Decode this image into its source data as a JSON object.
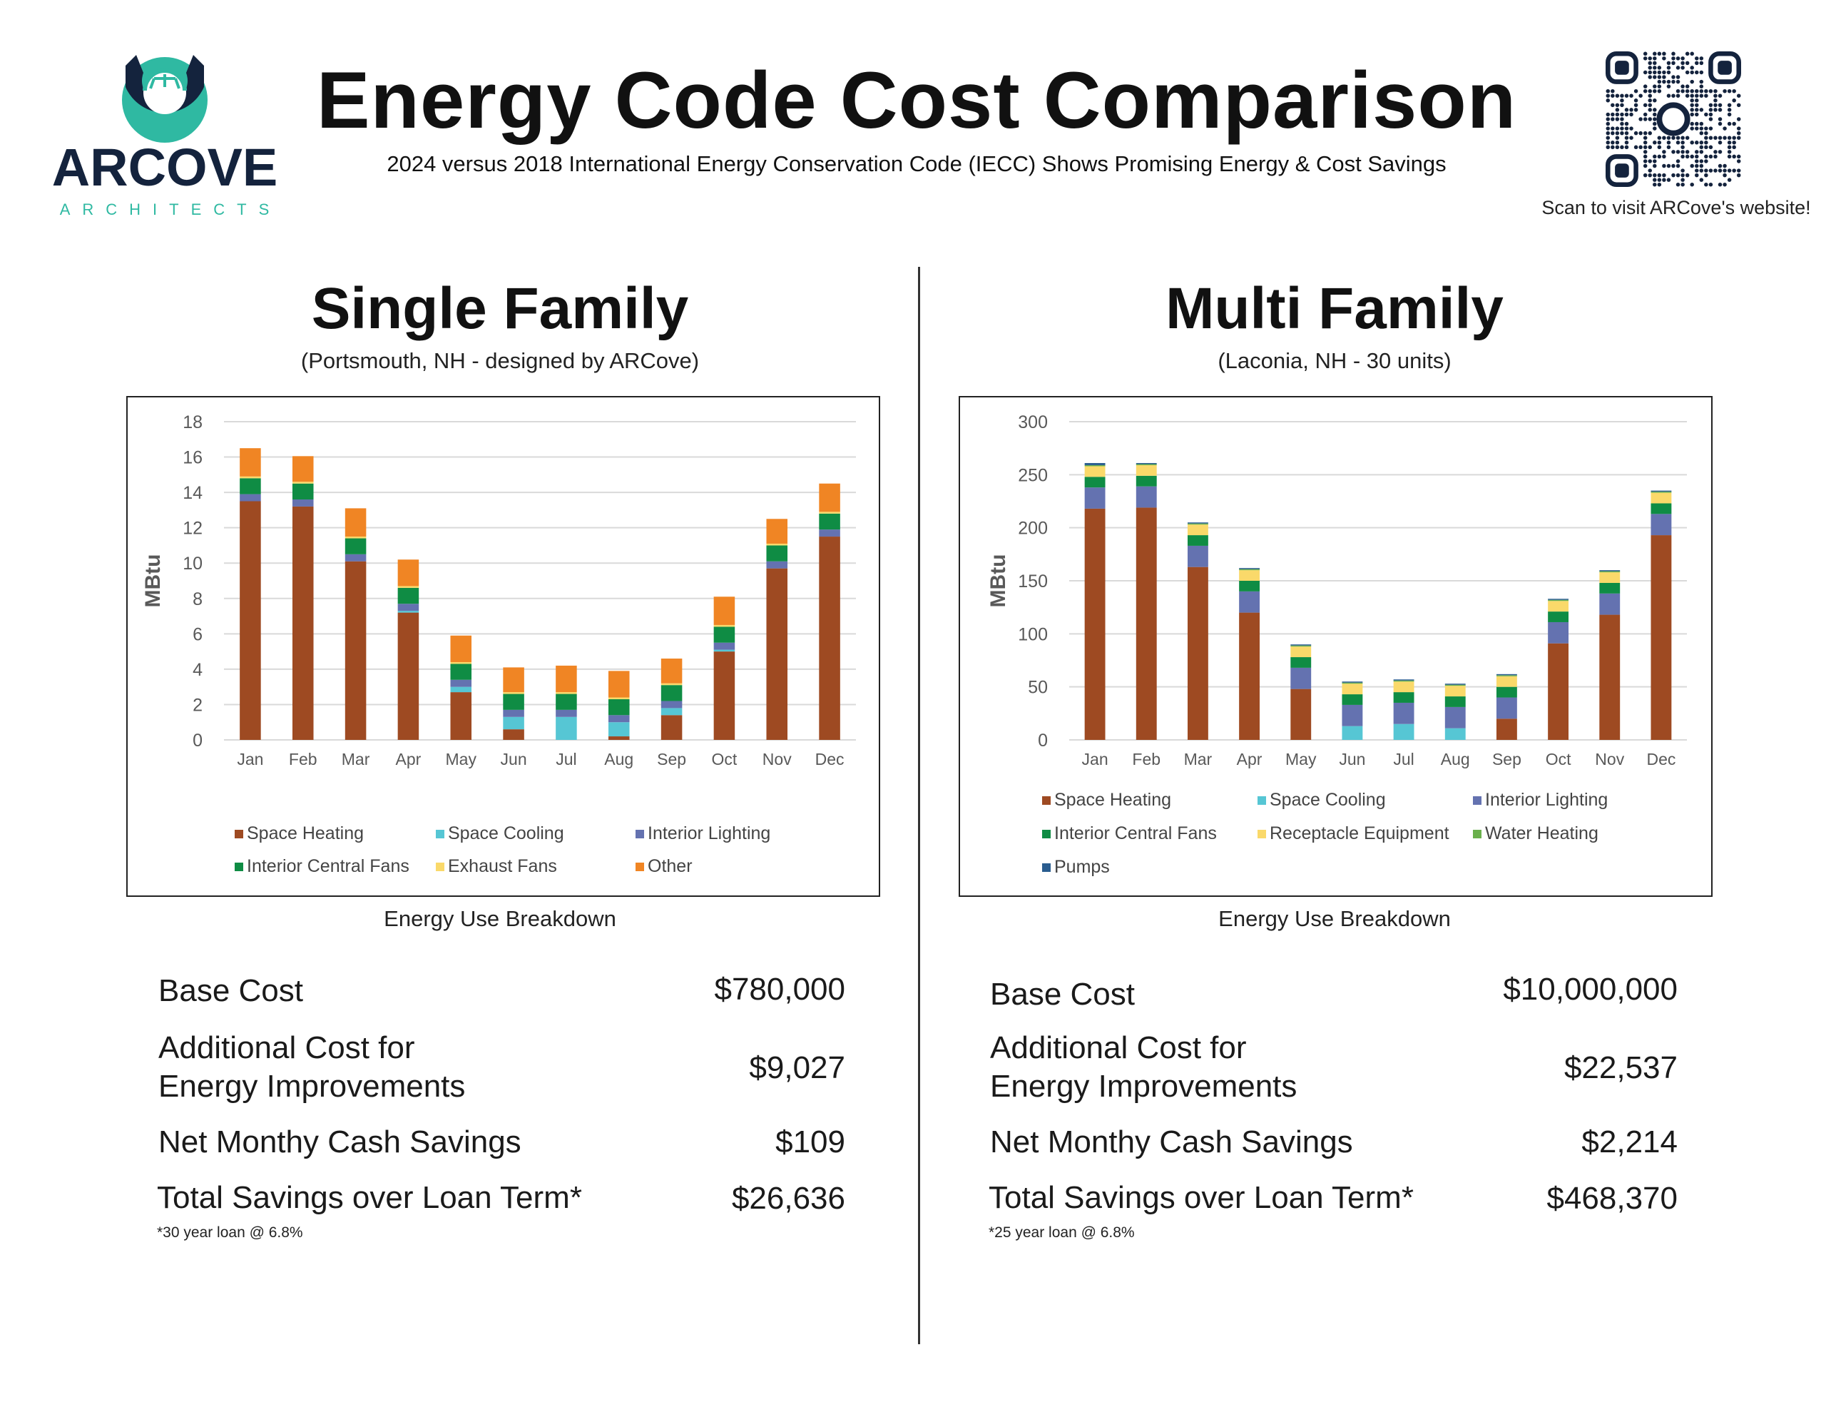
{
  "logo": {
    "wordmark": "ARCOVE",
    "tagline": "ARCHITECTS",
    "colors": {
      "navy": "#14233d",
      "teal": "#2fb9a2"
    }
  },
  "header": {
    "title": "Energy Code Cost Comparison",
    "subtitle": "2024 versus 2018 International Energy Conservation Code (IECC) Shows Promising Energy & Cost Savings",
    "qr_caption": "Scan to visit ARCove's website!"
  },
  "single": {
    "title": "Single Family",
    "subtitle": "(Portsmouth, NH - designed by ARCove)",
    "caption": "Energy Use Breakdown",
    "costs": {
      "base_label": "Base Cost",
      "base_value": "$780,000",
      "additional_label_1": "Additional Cost for",
      "additional_label_2": "Energy Improvements",
      "additional_value": "$9,027",
      "net_label": "Net Monthy Cash Savings",
      "net_value": "$109",
      "total_label": "Total Savings over Loan Term*",
      "total_value": "$26,636",
      "note": "*30 year loan @ 6.8%"
    }
  },
  "multi": {
    "title": "Multi Family",
    "subtitle": "(Laconia, NH - 30 units)",
    "caption": "Energy Use Breakdown",
    "costs": {
      "base_label": "Base Cost",
      "base_value": "$10,000,000",
      "additional_label_1": "Additional Cost for",
      "additional_label_2": "Energy Improvements",
      "additional_value": "$22,537",
      "net_label": "Net Monthy Cash Savings",
      "net_value": "$2,214",
      "total_label": "Total Savings over Loan Term*",
      "total_value": "$468,370",
      "note": "*25 year loan @ 6.8%"
    }
  },
  "chart_data": [
    {
      "type": "bar",
      "stacked": true,
      "title": "",
      "ylabel": "MBtu",
      "xlabel": "",
      "ylim": [
        0,
        18
      ],
      "yticks": [
        0,
        2,
        4,
        6,
        8,
        10,
        12,
        14,
        16,
        18
      ],
      "grid": true,
      "legend_position": "bottom",
      "categories": [
        "Jan",
        "Feb",
        "Mar",
        "Apr",
        "May",
        "Jun",
        "Jul",
        "Aug",
        "Sep",
        "Oct",
        "Nov",
        "Dec"
      ],
      "series": [
        {
          "name": "Space Heating",
          "color": "#9e4a22",
          "values": [
            13.5,
            13.2,
            10.1,
            7.2,
            2.7,
            0.6,
            0,
            0.2,
            1.4,
            5.0,
            9.7,
            11.5
          ]
        },
        {
          "name": "Space Cooling",
          "color": "#56c6d4",
          "values": [
            0,
            0,
            0,
            0.1,
            0.3,
            0.7,
            1.3,
            0.8,
            0.4,
            0.1,
            0,
            0
          ]
        },
        {
          "name": "Interior Lighting",
          "color": "#6472b0",
          "values": [
            0.4,
            0.4,
            0.4,
            0.4,
            0.4,
            0.4,
            0.4,
            0.4,
            0.4,
            0.4,
            0.4,
            0.4
          ]
        },
        {
          "name": "Interior Central Fans",
          "color": "#0f8c44",
          "values": [
            0.9,
            0.9,
            0.9,
            0.9,
            0.9,
            0.9,
            0.9,
            0.9,
            0.9,
            0.9,
            0.9,
            0.9
          ]
        },
        {
          "name": "Exhaust Fans",
          "color": "#fad96a",
          "values": [
            0.1,
            0.1,
            0.1,
            0.1,
            0.1,
            0.1,
            0.1,
            0.1,
            0.1,
            0.1,
            0.1,
            0.1
          ]
        },
        {
          "name": "Other",
          "color": "#f08524",
          "values": [
            1.6,
            1.45,
            1.6,
            1.5,
            1.5,
            1.4,
            1.5,
            1.5,
            1.4,
            1.6,
            1.4,
            1.6
          ]
        }
      ]
    },
    {
      "type": "bar",
      "stacked": true,
      "title": "",
      "ylabel": "MBtu",
      "xlabel": "",
      "ylim": [
        0,
        300
      ],
      "yticks": [
        0,
        50,
        100,
        150,
        200,
        250,
        300
      ],
      "grid": true,
      "legend_position": "bottom",
      "categories": [
        "Jan",
        "Feb",
        "Mar",
        "Apr",
        "May",
        "Jun",
        "Jul",
        "Aug",
        "Sep",
        "Oct",
        "Nov",
        "Dec"
      ],
      "series": [
        {
          "name": "Space Heating",
          "color": "#9e4a22",
          "values": [
            218,
            219,
            163,
            120,
            48,
            0,
            0,
            0,
            20,
            91,
            118,
            193
          ]
        },
        {
          "name": "Space Cooling",
          "color": "#56c6d4",
          "values": [
            0,
            0,
            0,
            0,
            0,
            13,
            15,
            11,
            0,
            0,
            0,
            0
          ]
        },
        {
          "name": "Interior Lighting",
          "color": "#6472b0",
          "values": [
            20,
            20,
            20,
            20,
            20,
            20,
            20,
            20,
            20,
            20,
            20,
            20
          ]
        },
        {
          "name": "Interior Central Fans",
          "color": "#0f8c44",
          "values": [
            10,
            10,
            10,
            10,
            10,
            10,
            10,
            10,
            10,
            10,
            10,
            10
          ]
        },
        {
          "name": "Receptacle Equipment",
          "color": "#fad96a",
          "values": [
            10,
            10,
            10,
            10,
            10,
            10,
            10,
            10,
            10,
            10,
            10,
            10
          ]
        },
        {
          "name": "Water Heating",
          "color": "#6ab04c",
          "values": [
            1,
            1,
            1,
            1,
            1,
            1,
            1,
            1,
            1,
            1,
            1,
            1
          ]
        },
        {
          "name": "Pumps",
          "color": "#2a5d8f",
          "values": [
            2,
            1,
            1,
            1,
            1,
            1,
            1,
            1,
            1,
            1,
            1,
            1
          ]
        }
      ]
    }
  ]
}
